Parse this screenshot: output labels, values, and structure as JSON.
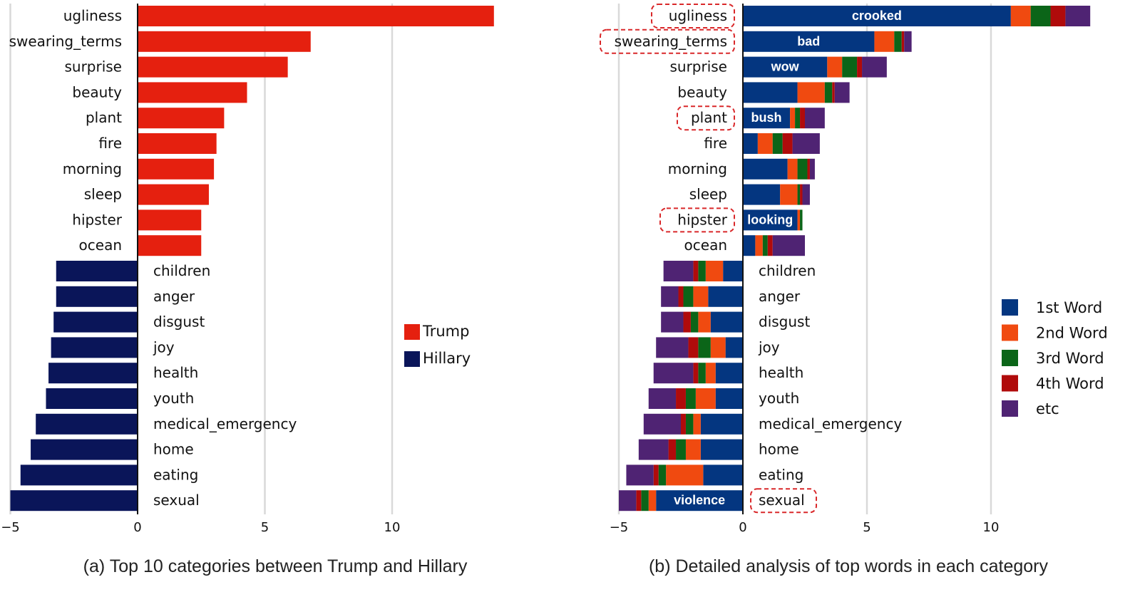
{
  "colors": {
    "trump": "#e5200f",
    "hillary": "#0a1559",
    "word1": "#043680",
    "word2": "#f04a10",
    "word3": "#0b6518",
    "word4": "#b00b0b",
    "etc": "#4f2373",
    "grid": "#d9d9d9",
    "highlight": "#d9282a"
  },
  "chart_data": [
    {
      "type": "bar",
      "orientation": "horizontal",
      "title": "(a) Top 10 categories between Trump and Hillary",
      "categories": [
        "ugliness",
        "swearing_terms",
        "surprise",
        "beauty",
        "plant",
        "fire",
        "morning",
        "sleep",
        "hipster",
        "ocean",
        "children",
        "anger",
        "disgust",
        "joy",
        "health",
        "youth",
        "medical_emergency",
        "home",
        "eating",
        "sexual"
      ],
      "values": [
        14.0,
        6.8,
        5.9,
        4.3,
        3.4,
        3.1,
        3.0,
        2.8,
        2.5,
        2.5,
        -3.2,
        -3.2,
        -3.3,
        -3.4,
        -3.5,
        -3.6,
        -4.0,
        -4.2,
        -4.6,
        -5.0
      ],
      "series": [
        {
          "name": "Trump"
        },
        {
          "name": "Hillary"
        }
      ],
      "xlim": [
        -5,
        14
      ],
      "xticks": [
        -5,
        0,
        5,
        10
      ],
      "grid": true,
      "legend": "center-right"
    },
    {
      "type": "bar",
      "orientation": "horizontal",
      "stacked": true,
      "title": "(b) Detailed analysis of top words in each category",
      "categories": [
        "ugliness",
        "swearing_terms",
        "surprise",
        "beauty",
        "plant",
        "fire",
        "morning",
        "sleep",
        "hipster",
        "ocean",
        "children",
        "anger",
        "disgust",
        "joy",
        "health",
        "youth",
        "medical_emergency",
        "home",
        "eating",
        "sexual"
      ],
      "series": [
        {
          "name": "1st Word",
          "values": [
            10.8,
            5.3,
            3.4,
            2.2,
            1.9,
            0.6,
            1.8,
            1.5,
            2.2,
            0.5,
            -0.8,
            -1.4,
            -1.3,
            -0.7,
            -1.1,
            -1.1,
            -1.7,
            -1.7,
            -1.6,
            -3.5
          ]
        },
        {
          "name": "2nd Word",
          "values": [
            0.8,
            0.8,
            0.6,
            1.1,
            0.2,
            0.6,
            0.4,
            0.7,
            0.1,
            0.3,
            -0.7,
            -0.6,
            -0.5,
            -0.6,
            -0.4,
            -0.8,
            -0.3,
            -0.6,
            -1.5,
            -0.3
          ]
        },
        {
          "name": "3rd Word",
          "values": [
            0.8,
            0.3,
            0.6,
            0.3,
            0.2,
            0.4,
            0.4,
            0.1,
            0.1,
            0.2,
            -0.3,
            -0.4,
            -0.3,
            -0.5,
            -0.3,
            -0.4,
            -0.3,
            -0.4,
            -0.3,
            -0.3
          ]
        },
        {
          "name": "4th Word",
          "values": [
            0.6,
            0.1,
            0.2,
            0.1,
            0.2,
            0.4,
            0.1,
            0.1,
            0.0,
            0.2,
            -0.2,
            -0.2,
            -0.3,
            -0.4,
            -0.2,
            -0.4,
            -0.2,
            -0.3,
            -0.2,
            -0.2
          ]
        },
        {
          "name": "etc",
          "values": [
            1.0,
            0.3,
            1.0,
            0.6,
            0.8,
            1.1,
            0.2,
            0.3,
            0.0,
            1.3,
            -1.2,
            -0.7,
            -0.9,
            -1.3,
            -1.6,
            -1.1,
            -1.5,
            -1.2,
            -1.1,
            -0.7
          ]
        }
      ],
      "bar_labels": {
        "ugliness": "crooked",
        "swearing_terms": "bad",
        "surprise": "wow",
        "plant": "bush",
        "hipster": "looking",
        "sexual": "violence"
      },
      "highlighted": [
        "ugliness",
        "swearing_terms",
        "plant",
        "hipster",
        "sexual"
      ],
      "xlim": [
        -5,
        14
      ],
      "xticks": [
        -5,
        0,
        5,
        10
      ],
      "grid": true,
      "legend": "center-right"
    }
  ]
}
